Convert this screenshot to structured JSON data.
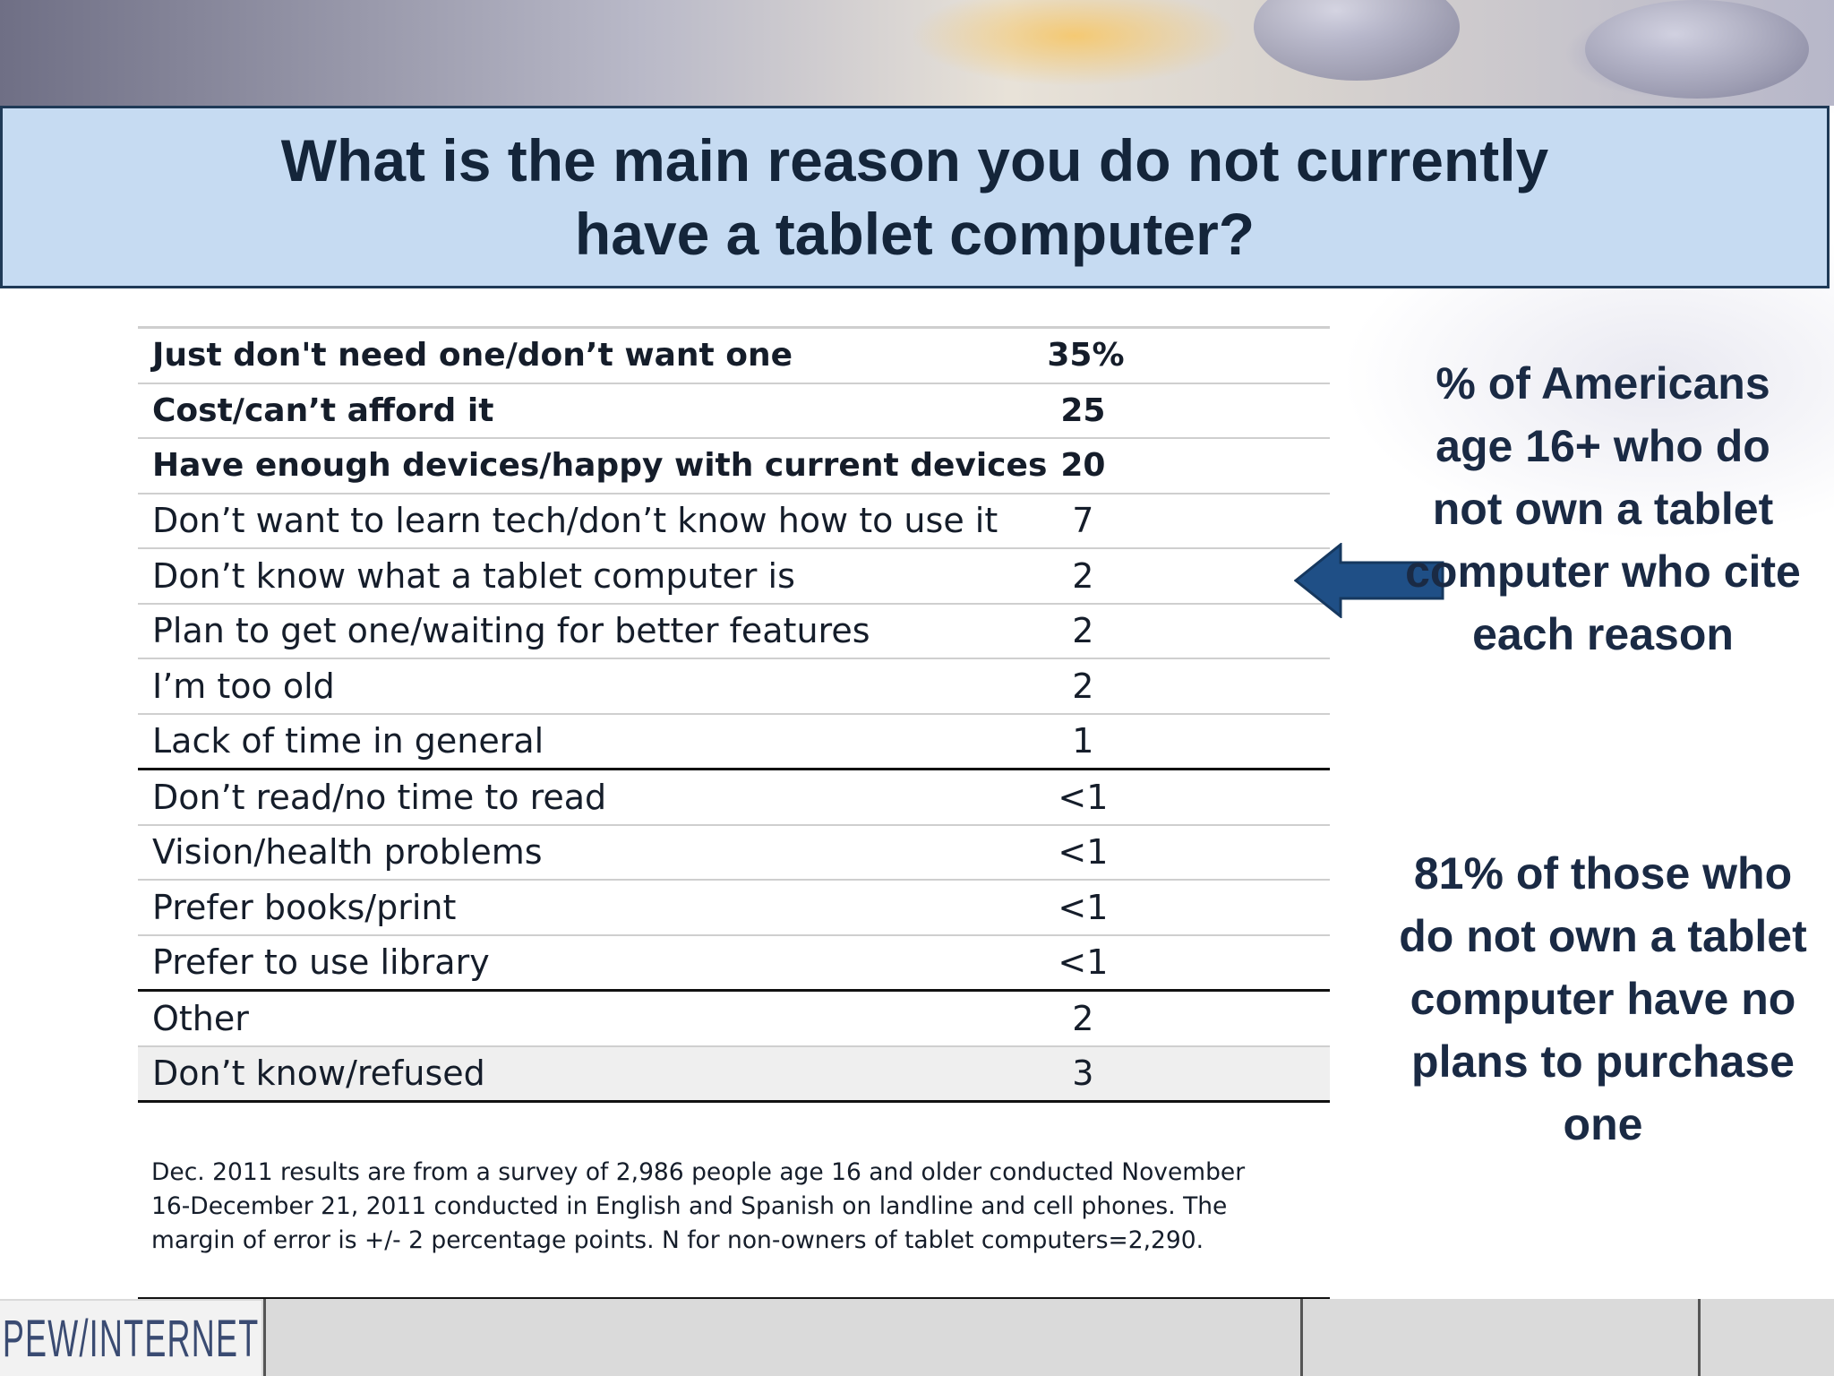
{
  "title": "What is the main reason you do not currently have a tablet computer?",
  "table": {
    "rows": [
      {
        "reason": "Just don't need one/don’t want one",
        "value": "35%"
      },
      {
        "reason": "Cost/can’t afford it",
        "value": "25"
      },
      {
        "reason": "Have enough devices/happy with current devices",
        "value": "20"
      },
      {
        "reason": "Don’t want to learn tech/don’t know how to use it",
        "value": "7"
      },
      {
        "reason": "Don’t know what a tablet computer is",
        "value": "2"
      },
      {
        "reason": "Plan to get one/waiting for better features",
        "value": "2"
      },
      {
        "reason": "I’m too old",
        "value": "2"
      },
      {
        "reason": "Lack of time in general",
        "value": "1"
      },
      {
        "reason": "Don’t read/no time to read",
        "value": "<1"
      },
      {
        "reason": "Vision/health problems",
        "value": "<1"
      },
      {
        "reason": "Prefer books/print",
        "value": "<1"
      },
      {
        "reason": "Prefer to use library",
        "value": "<1"
      },
      {
        "reason": "Other",
        "value": "2"
      },
      {
        "reason": "Don’t know/refused",
        "value": "3"
      }
    ]
  },
  "note": "Dec. 2011 results are from a survey of 2,986 people age 16 and older conducted November 16-December 21, 2011 conducted in English and Spanish on landline and cell phones. The margin of error is +/- 2 percentage points. N for non-owners of tablet computers=2,290.",
  "side_text_1": "% of Americans age 16+ who do not own a tablet computer who cite each reason",
  "side_text_2": "81% of those who do not own a tablet computer have no plans to purchase one",
  "logo": "PEW/INTERNET",
  "colors": {
    "title_bg": "#c6dbf2",
    "title_border": "#1f3a57",
    "text_dark": "#14253a",
    "arrow": "#1f4f86",
    "logo": "#3a4b72"
  },
  "icons": {
    "arrow": "left-arrow-icon"
  }
}
